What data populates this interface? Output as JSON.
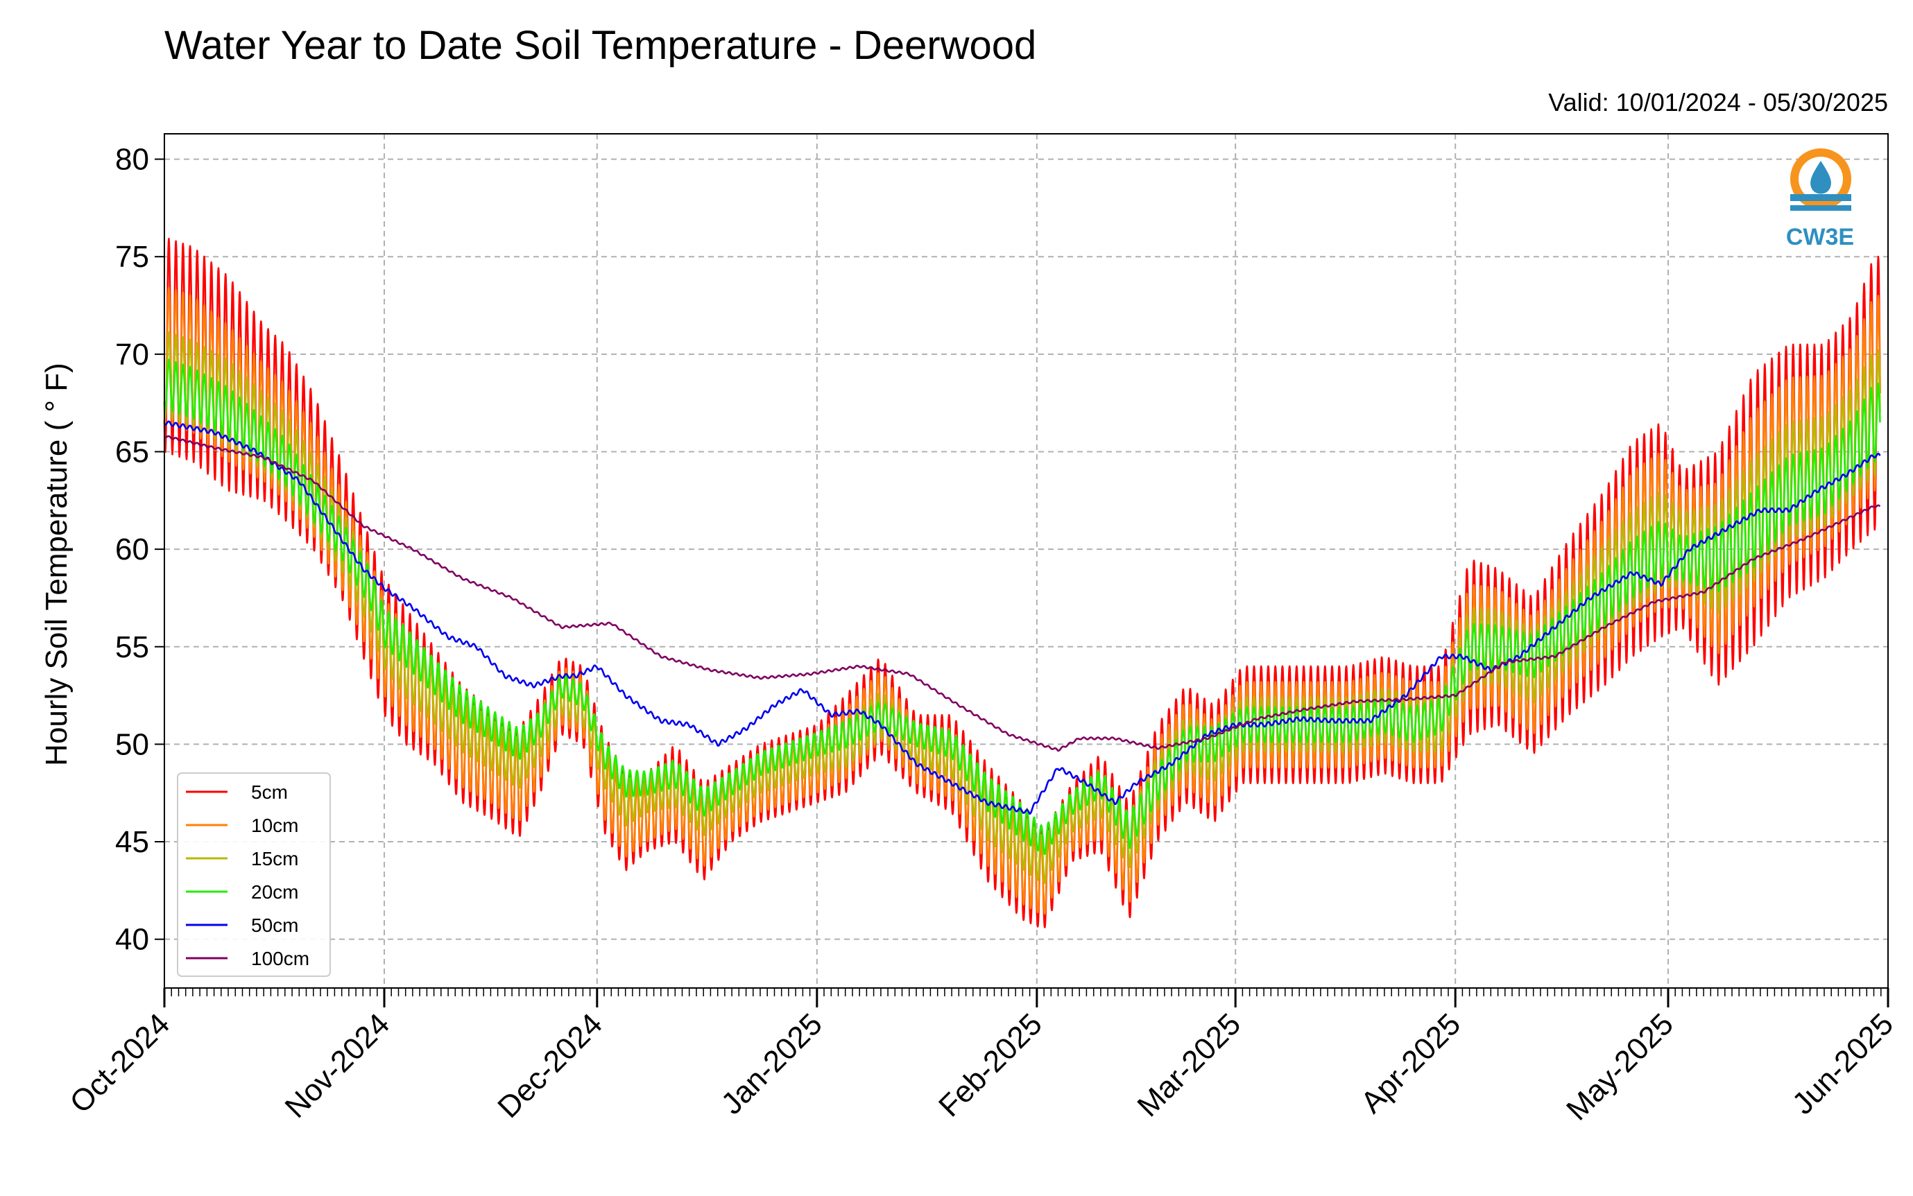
{
  "chart_data": {
    "type": "line",
    "title": "Water Year to Date Soil Temperature - Deerwood",
    "subtitle": "Valid: 10/01/2024 - 05/30/2025",
    "ylabel": "Hourly Soil Temperature ( ° F)",
    "xlabel": "",
    "ylim": [
      37.5,
      81.3
    ],
    "xlim": [
      "2024-10-01",
      "2025-06-01"
    ],
    "y_ticks": [
      40,
      45,
      50,
      55,
      60,
      65,
      70,
      75,
      80
    ],
    "x_ticks": [
      "Oct-2024",
      "Nov-2024",
      "Dec-2024",
      "Jan-2025",
      "Feb-2025",
      "Mar-2025",
      "Apr-2025",
      "May-2025",
      "Jun-2025"
    ],
    "x_tick_dates": [
      "2024-10-01",
      "2024-11-01",
      "2024-12-01",
      "2025-01-01",
      "2025-02-01",
      "2025-03-01",
      "2025-04-01",
      "2025-05-01",
      "2025-06-01"
    ],
    "grid": true,
    "legend_position": "lower-left",
    "logo_text": "CW3E",
    "daily_amplitude_note_values": {
      "5cm": 1.0,
      "10cm": 0.75,
      "15cm": 0.55,
      "20cm": 0.42,
      "50cm": 0.03,
      "100cm": 0.01
    },
    "series": [
      {
        "name": "5cm",
        "color": "#ff0000",
        "dates": [
          "2024-10-01",
          "2024-10-05",
          "2024-10-10",
          "2024-10-15",
          "2024-10-18",
          "2024-10-22",
          "2024-10-26",
          "2024-10-30",
          "2024-11-01",
          "2024-11-04",
          "2024-11-08",
          "2024-11-12",
          "2024-11-16",
          "2024-11-20",
          "2024-11-23",
          "2024-11-26",
          "2024-11-29",
          "2024-12-02",
          "2024-12-05",
          "2024-12-08",
          "2024-12-12",
          "2024-12-16",
          "2024-12-20",
          "2024-12-24",
          "2024-12-28",
          "2025-01-01",
          "2025-01-05",
          "2025-01-10",
          "2025-01-15",
          "2025-01-20",
          "2025-01-25",
          "2025-01-30",
          "2025-02-02",
          "2025-02-06",
          "2025-02-10",
          "2025-02-14",
          "2025-02-18",
          "2025-02-22",
          "2025-02-26",
          "2025-03-02",
          "2025-03-07",
          "2025-03-12",
          "2025-03-17",
          "2025-03-22",
          "2025-03-26",
          "2025-03-30",
          "2025-04-03",
          "2025-04-07",
          "2025-04-12",
          "2025-04-17",
          "2025-04-22",
          "2025-04-26",
          "2025-04-30",
          "2025-05-03",
          "2025-05-08",
          "2025-05-13",
          "2025-05-18",
          "2025-05-23",
          "2025-05-27",
          "2025-05-30"
        ],
        "center": [
          70.5,
          70,
          68.5,
          67,
          66,
          64,
          61,
          57,
          55,
          53.5,
          52,
          50,
          49,
          48,
          50,
          52.5,
          52,
          48,
          46,
          46.5,
          47.5,
          45.5,
          47,
          48,
          48.5,
          49,
          50,
          52,
          49.5,
          49,
          46,
          44,
          43,
          46,
          47,
          44,
          48,
          50,
          49,
          51,
          51,
          51,
          51,
          51.5,
          51,
          51,
          55,
          55,
          53.5,
          56,
          58,
          60,
          61,
          60,
          59,
          62,
          64,
          64.5,
          66,
          68
        ],
        "amplitude": [
          5.5,
          5.5,
          5.5,
          4.5,
          4.5,
          4.0,
          3.5,
          3.5,
          3.5,
          3.5,
          3.0,
          3.0,
          2.8,
          2.8,
          2.5,
          2.0,
          2.0,
          2.5,
          2.5,
          2.0,
          2.5,
          2.5,
          2.0,
          2.0,
          2.0,
          2.0,
          2.5,
          2.5,
          2.0,
          2.5,
          3.0,
          3.0,
          2.5,
          2.0,
          2.5,
          3.0,
          3.0,
          3.0,
          3.0,
          3.0,
          3.0,
          3.0,
          3.0,
          3.0,
          3.0,
          3.0,
          4.5,
          4.0,
          4.0,
          4.5,
          5.0,
          5.5,
          5.5,
          4.0,
          6.0,
          7.0,
          6.5,
          6.0,
          6.0,
          7.0
        ]
      },
      {
        "name": "10cm",
        "color": "#ff8000",
        "dates": [
          "2024-10-01",
          "2024-10-05",
          "2024-10-10",
          "2024-10-15",
          "2024-10-18",
          "2024-10-22",
          "2024-10-26",
          "2024-10-30",
          "2024-11-01",
          "2024-11-04",
          "2024-11-08",
          "2024-11-12",
          "2024-11-16",
          "2024-11-20",
          "2024-11-23",
          "2024-11-26",
          "2024-11-29",
          "2024-12-02",
          "2024-12-05",
          "2024-12-08",
          "2024-12-12",
          "2024-12-16",
          "2024-12-20",
          "2024-12-24",
          "2024-12-28",
          "2025-01-01",
          "2025-01-05",
          "2025-01-10",
          "2025-01-15",
          "2025-01-20",
          "2025-01-25",
          "2025-01-30",
          "2025-02-02",
          "2025-02-06",
          "2025-02-10",
          "2025-02-14",
          "2025-02-18",
          "2025-02-22",
          "2025-02-26",
          "2025-03-02",
          "2025-03-07",
          "2025-03-12",
          "2025-03-17",
          "2025-03-22",
          "2025-03-26",
          "2025-03-30",
          "2025-04-03",
          "2025-04-07",
          "2025-04-12",
          "2025-04-17",
          "2025-04-22",
          "2025-04-26",
          "2025-04-30",
          "2025-05-03",
          "2025-05-08",
          "2025-05-13",
          "2025-05-18",
          "2025-05-23",
          "2025-05-27",
          "2025-05-30"
        ],
        "center": [
          70,
          69.5,
          68,
          66.5,
          65.5,
          63.5,
          60.5,
          57,
          55,
          53.5,
          52,
          50,
          49,
          48,
          50,
          52.5,
          52,
          48,
          46,
          46.5,
          47.5,
          45.5,
          47,
          48,
          48.5,
          49,
          50,
          52,
          49.5,
          49,
          46,
          44,
          43,
          46,
          47,
          44,
          48,
          50,
          49,
          51,
          51,
          51,
          51,
          51.5,
          51,
          51,
          55,
          55,
          53.5,
          56,
          58,
          60,
          61,
          60,
          59,
          62,
          64,
          64.5,
          66,
          68
        ],
        "amplitude": [
          3.5,
          3.5,
          3.5,
          3.0,
          3.0,
          2.8,
          2.5,
          2.5,
          2.5,
          2.5,
          2.2,
          2.2,
          2.0,
          2.0,
          1.8,
          1.5,
          1.5,
          1.8,
          1.8,
          1.5,
          1.8,
          1.8,
          1.5,
          1.5,
          1.5,
          1.5,
          1.8,
          1.8,
          1.5,
          1.8,
          2.2,
          2.2,
          1.8,
          1.5,
          1.8,
          2.2,
          2.2,
          2.2,
          2.2,
          2.2,
          2.2,
          2.2,
          2.2,
          2.2,
          2.2,
          2.2,
          3.2,
          3.0,
          3.0,
          3.2,
          3.6,
          4.0,
          4.0,
          3.0,
          4.4,
          5.0,
          4.8,
          4.4,
          4.4,
          5.0
        ]
      },
      {
        "name": "15cm",
        "color": "#b8b800",
        "dates": [
          "2024-10-01",
          "2024-10-05",
          "2024-10-10",
          "2024-10-15",
          "2024-10-18",
          "2024-10-22",
          "2024-10-26",
          "2024-10-30",
          "2024-11-01",
          "2024-11-04",
          "2024-11-08",
          "2024-11-12",
          "2024-11-16",
          "2024-11-20",
          "2024-11-23",
          "2024-11-26",
          "2024-11-29",
          "2024-12-02",
          "2024-12-05",
          "2024-12-08",
          "2024-12-12",
          "2024-12-16",
          "2024-12-20",
          "2024-12-24",
          "2024-12-28",
          "2025-01-01",
          "2025-01-05",
          "2025-01-10",
          "2025-01-15",
          "2025-01-20",
          "2025-01-25",
          "2025-01-30",
          "2025-02-02",
          "2025-02-06",
          "2025-02-10",
          "2025-02-14",
          "2025-02-18",
          "2025-02-22",
          "2025-02-26",
          "2025-03-02",
          "2025-03-07",
          "2025-03-12",
          "2025-03-17",
          "2025-03-22",
          "2025-03-26",
          "2025-03-30",
          "2025-04-03",
          "2025-04-07",
          "2025-04-12",
          "2025-04-17",
          "2025-04-22",
          "2025-04-26",
          "2025-04-30",
          "2025-05-03",
          "2025-05-08",
          "2025-05-13",
          "2025-05-18",
          "2025-05-23",
          "2025-05-27",
          "2025-05-30"
        ],
        "center": [
          69,
          68.5,
          67.5,
          66,
          65,
          63,
          60.5,
          57.5,
          55.5,
          54,
          52.5,
          51,
          50,
          49,
          50.5,
          52.5,
          52,
          49,
          47,
          47.5,
          48,
          46.5,
          47.5,
          48.5,
          49,
          49.5,
          50,
          51.5,
          50,
          49.5,
          46.5,
          45,
          44,
          46.5,
          47.5,
          45,
          48,
          50,
          49.5,
          51,
          51,
          51,
          51,
          51.5,
          51,
          51,
          55,
          55,
          54,
          56,
          58,
          59.5,
          60.5,
          60,
          59.5,
          61.5,
          63.5,
          64,
          65.5,
          67
        ],
        "amplitude": [
          2.2,
          2.2,
          2.2,
          2.0,
          2.0,
          1.8,
          1.6,
          1.6,
          1.6,
          1.6,
          1.4,
          1.4,
          1.3,
          1.3,
          1.2,
          1.0,
          1.0,
          1.2,
          1.2,
          1.0,
          1.2,
          1.2,
          1.0,
          1.0,
          1.0,
          1.0,
          1.2,
          1.2,
          1.0,
          1.2,
          1.4,
          1.4,
          1.2,
          1.0,
          1.2,
          1.4,
          1.4,
          1.4,
          1.4,
          1.4,
          1.4,
          1.4,
          1.4,
          1.4,
          1.4,
          1.4,
          2.0,
          1.9,
          1.9,
          2.0,
          2.3,
          2.5,
          2.5,
          1.9,
          2.8,
          3.2,
          3.0,
          2.8,
          2.8,
          3.2
        ]
      },
      {
        "name": "20cm",
        "color": "#22ee00",
        "dates": [
          "2024-10-01",
          "2024-10-05",
          "2024-10-10",
          "2024-10-15",
          "2024-10-18",
          "2024-10-22",
          "2024-10-26",
          "2024-10-30",
          "2024-11-01",
          "2024-11-04",
          "2024-11-08",
          "2024-11-12",
          "2024-11-16",
          "2024-11-20",
          "2024-11-23",
          "2024-11-26",
          "2024-11-29",
          "2024-12-02",
          "2024-12-05",
          "2024-12-08",
          "2024-12-12",
          "2024-12-16",
          "2024-12-20",
          "2024-12-24",
          "2024-12-28",
          "2025-01-01",
          "2025-01-05",
          "2025-01-10",
          "2025-01-15",
          "2025-01-20",
          "2025-01-25",
          "2025-01-30",
          "2025-02-02",
          "2025-02-06",
          "2025-02-10",
          "2025-02-14",
          "2025-02-18",
          "2025-02-22",
          "2025-02-26",
          "2025-03-02",
          "2025-03-07",
          "2025-03-12",
          "2025-03-17",
          "2025-03-22",
          "2025-03-26",
          "2025-03-30",
          "2025-04-03",
          "2025-04-07",
          "2025-04-12",
          "2025-04-17",
          "2025-04-22",
          "2025-04-26",
          "2025-04-30",
          "2025-05-03",
          "2025-05-08",
          "2025-05-13",
          "2025-05-18",
          "2025-05-23",
          "2025-05-27",
          "2025-05-30"
        ],
        "center": [
          68.5,
          68,
          67,
          65.5,
          64.5,
          62.5,
          60.5,
          58,
          56,
          55,
          53.5,
          52,
          51,
          50,
          51,
          53,
          52.5,
          49.5,
          48,
          48,
          48.5,
          47,
          48,
          49,
          49.5,
          50,
          50.5,
          51.5,
          50.5,
          50,
          47.5,
          46,
          45,
          47,
          48,
          45.5,
          48,
          50,
          50,
          51,
          51,
          51,
          51,
          51.5,
          51,
          51.5,
          55,
          55,
          54.5,
          56,
          57.5,
          59,
          60,
          59.5,
          59.5,
          61,
          63,
          63.5,
          65,
          66.5
        ],
        "amplitude": [
          1.3,
          1.3,
          1.3,
          1.2,
          1.2,
          1.1,
          1.0,
          1.0,
          1.0,
          1.0,
          0.9,
          0.9,
          0.8,
          0.8,
          0.7,
          0.6,
          0.6,
          0.7,
          0.7,
          0.6,
          0.7,
          0.7,
          0.6,
          0.6,
          0.6,
          0.6,
          0.7,
          0.7,
          0.6,
          0.7,
          0.9,
          0.9,
          0.7,
          0.6,
          0.7,
          0.9,
          0.9,
          0.9,
          0.9,
          0.9,
          0.9,
          0.9,
          0.9,
          0.9,
          0.9,
          0.9,
          1.2,
          1.1,
          1.1,
          1.2,
          1.4,
          1.5,
          1.5,
          1.1,
          1.7,
          2.0,
          1.8,
          1.7,
          1.7,
          2.0
        ]
      },
      {
        "name": "50cm",
        "color": "#0000ee",
        "dates": [
          "2024-10-01",
          "2024-10-08",
          "2024-10-14",
          "2024-10-20",
          "2024-10-26",
          "2024-10-29",
          "2024-11-01",
          "2024-11-05",
          "2024-11-10",
          "2024-11-14",
          "2024-11-18",
          "2024-11-22",
          "2024-11-26",
          "2024-11-28",
          "2024-12-01",
          "2024-12-05",
          "2024-12-10",
          "2024-12-14",
          "2024-12-18",
          "2024-12-22",
          "2024-12-26",
          "2024-12-30",
          "2025-01-03",
          "2025-01-07",
          "2025-01-10",
          "2025-01-15",
          "2025-01-20",
          "2025-01-25",
          "2025-01-31",
          "2025-02-04",
          "2025-02-08",
          "2025-02-12",
          "2025-02-15",
          "2025-02-20",
          "2025-02-25",
          "2025-03-01",
          "2025-03-05",
          "2025-03-10",
          "2025-03-15",
          "2025-03-20",
          "2025-03-25",
          "2025-03-30",
          "2025-04-02",
          "2025-04-06",
          "2025-04-10",
          "2025-04-15",
          "2025-04-20",
          "2025-04-26",
          "2025-04-30",
          "2025-05-04",
          "2025-05-09",
          "2025-05-14",
          "2025-05-18",
          "2025-05-22",
          "2025-05-26",
          "2025-05-30"
        ],
        "center": [
          66.5,
          66,
          65,
          63.5,
          60.5,
          59,
          58,
          57,
          55.5,
          55,
          53.5,
          53,
          53.5,
          53.5,
          54,
          52.5,
          51.2,
          51,
          50,
          50.8,
          52,
          52.8,
          51.5,
          51.7,
          51,
          49,
          48,
          47,
          46.5,
          48.8,
          48,
          47,
          48,
          49,
          50.5,
          51,
          51,
          51.3,
          51.2,
          51.2,
          52.5,
          54.5,
          54.5,
          53.8,
          54.5,
          56,
          57.5,
          58.8,
          58.2,
          60,
          61,
          62,
          62,
          63,
          63.8,
          64.8
        ],
        "amplitude": [
          0.1,
          0.1,
          0.1,
          0.1,
          0.1,
          0.1,
          0.1,
          0.1,
          0.1,
          0.1,
          0.1,
          0.1,
          0.1,
          0.1,
          0.1,
          0.1,
          0.1,
          0.1,
          0.1,
          0.1,
          0.1,
          0.1,
          0.1,
          0.1,
          0.1,
          0.1,
          0.1,
          0.1,
          0.1,
          0.1,
          0.1,
          0.1,
          0.1,
          0.1,
          0.1,
          0.1,
          0.1,
          0.1,
          0.1,
          0.1,
          0.1,
          0.1,
          0.1,
          0.1,
          0.1,
          0.1,
          0.1,
          0.1,
          0.1,
          0.1,
          0.1,
          0.1,
          0.1,
          0.1,
          0.1,
          0.1
        ]
      },
      {
        "name": "100cm",
        "color": "#800060",
        "dates": [
          "2024-10-01",
          "2024-10-08",
          "2024-10-15",
          "2024-10-22",
          "2024-10-29",
          "2024-11-05",
          "2024-11-12",
          "2024-11-19",
          "2024-11-26",
          "2024-12-03",
          "2024-12-10",
          "2024-12-17",
          "2024-12-24",
          "2024-12-31",
          "2025-01-07",
          "2025-01-14",
          "2025-01-21",
          "2025-01-28",
          "2025-02-04",
          "2025-02-07",
          "2025-02-12",
          "2025-02-18",
          "2025-02-25",
          "2025-03-04",
          "2025-03-11",
          "2025-03-18",
          "2025-03-25",
          "2025-04-01",
          "2025-04-08",
          "2025-04-15",
          "2025-04-22",
          "2025-04-29",
          "2025-05-06",
          "2025-05-13",
          "2025-05-20",
          "2025-05-30"
        ],
        "center": [
          65.8,
          65.2,
          64.7,
          63.5,
          61.2,
          60,
          58.5,
          57.5,
          56,
          56.2,
          54.5,
          53.8,
          53.4,
          53.6,
          54,
          53.6,
          52,
          50.5,
          49.7,
          50.3,
          50.3,
          49.8,
          50.3,
          51.3,
          51.8,
          52.2,
          52.3,
          52.5,
          54.2,
          54.5,
          56,
          57.3,
          57.8,
          59.5,
          60.5,
          62.2
        ],
        "amplitude": [
          0.05,
          0.05,
          0.05,
          0.05,
          0.05,
          0.05,
          0.05,
          0.05,
          0.05,
          0.05,
          0.05,
          0.05,
          0.05,
          0.05,
          0.05,
          0.05,
          0.05,
          0.05,
          0.05,
          0.05,
          0.05,
          0.05,
          0.05,
          0.05,
          0.05,
          0.05,
          0.05,
          0.05,
          0.05,
          0.05,
          0.05,
          0.05,
          0.05,
          0.05,
          0.05,
          0.05
        ]
      }
    ]
  }
}
